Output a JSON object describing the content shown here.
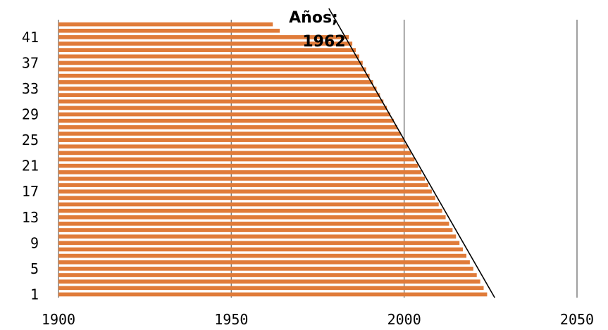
{
  "chart_data": {
    "type": "bar",
    "orientation": "horizontal",
    "categories": [
      1,
      2,
      3,
      4,
      5,
      6,
      7,
      8,
      9,
      10,
      11,
      12,
      13,
      14,
      15,
      16,
      17,
      18,
      19,
      20,
      21,
      22,
      23,
      24,
      25,
      26,
      27,
      28,
      29,
      30,
      31,
      32,
      33,
      34,
      35,
      36,
      37,
      38,
      39,
      40,
      41,
      42,
      43
    ],
    "y_tick_labels": [
      "1",
      "5",
      "9",
      "13",
      "17",
      "21",
      "25",
      "29",
      "33",
      "37",
      "41"
    ],
    "x_tick_labels": [
      "1900",
      "1950",
      "2000",
      "2050"
    ],
    "series": [
      {
        "values": [
          2024,
          2023,
          2022,
          2021,
          2020,
          2019,
          2018,
          2017,
          2016,
          2015,
          2014,
          2013,
          2012,
          2011,
          2010,
          2009,
          2008,
          2007,
          2006,
          2005,
          2004,
          2003,
          2002,
          2001,
          2000,
          1999,
          1998,
          1997,
          1996,
          1995,
          1994,
          1993,
          1992,
          1991,
          1990,
          1989,
          1988,
          1987,
          1986,
          1985,
          1984,
          1964,
          1962
        ],
        "color": "#E07B39"
      }
    ],
    "xlim": [
      1900,
      2050
    ],
    "grid": true,
    "data_label": {
      "text_line1": "Años;",
      "text_line2": "1962"
    },
    "trendline": {
      "type": "linear",
      "color": "#000000"
    }
  }
}
